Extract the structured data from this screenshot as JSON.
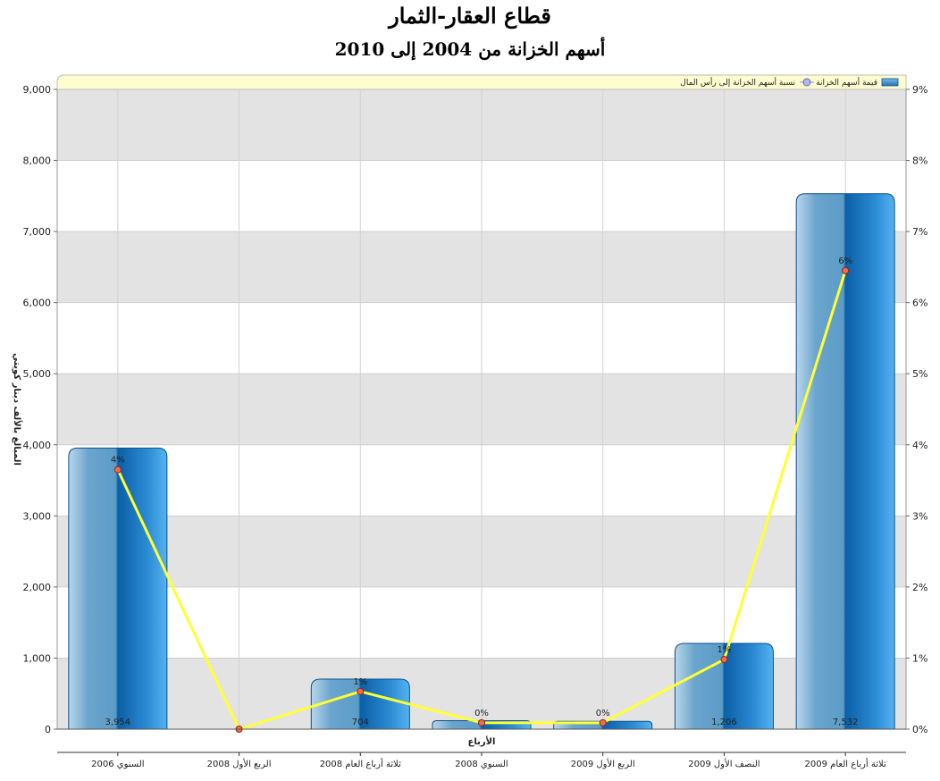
{
  "chart_data": {
    "type": "bar",
    "title": "قطاع العقار-الثمار",
    "subtitle": "أسهم الخزانة من 2004 إلى 2010",
    "xlabel": "الأرباع",
    "ylabel": "المبالغ بالألف دينار كويتي",
    "ylim": [
      0,
      9000
    ],
    "y2lim": [
      0,
      9
    ],
    "y_ticks": [
      "0",
      "1,000",
      "2,000",
      "3,000",
      "4,000",
      "5,000",
      "6,000",
      "7,000",
      "8,000",
      "9,000"
    ],
    "y2_ticks": [
      "0%",
      "1%",
      "2%",
      "3%",
      "4%",
      "5%",
      "6%",
      "7%",
      "8%",
      "9%"
    ],
    "legend_position": "top",
    "grid": true,
    "categories": [
      "السنوي 2006",
      "الربع الأول 2008",
      "ثلاثة أرباع العام 2008",
      "السنوي 2008",
      "الربع الأول 2009",
      "النصف الأول 2009",
      "ثلاثة أرباع العام 2009"
    ],
    "series": [
      {
        "name": "قيمة أسهم الخزانة",
        "kind": "bar",
        "values": [
          3954,
          0,
          704,
          120,
          110,
          1206,
          7532
        ],
        "labels": [
          "3,954",
          "",
          "704",
          "",
          "",
          "1,206",
          "7,532"
        ],
        "color": "#1a6fb5"
      },
      {
        "name": "نسبة أسهم الخزانة إلى رأس المال",
        "kind": "line",
        "axis": "right",
        "values": [
          3.65,
          0.0,
          0.53,
          0.09,
          0.09,
          0.98,
          6.45
        ],
        "labels": [
          "4%",
          "",
          "1%",
          "0%",
          "0%",
          "1%",
          "6%"
        ],
        "color": "#ffff33"
      }
    ]
  }
}
